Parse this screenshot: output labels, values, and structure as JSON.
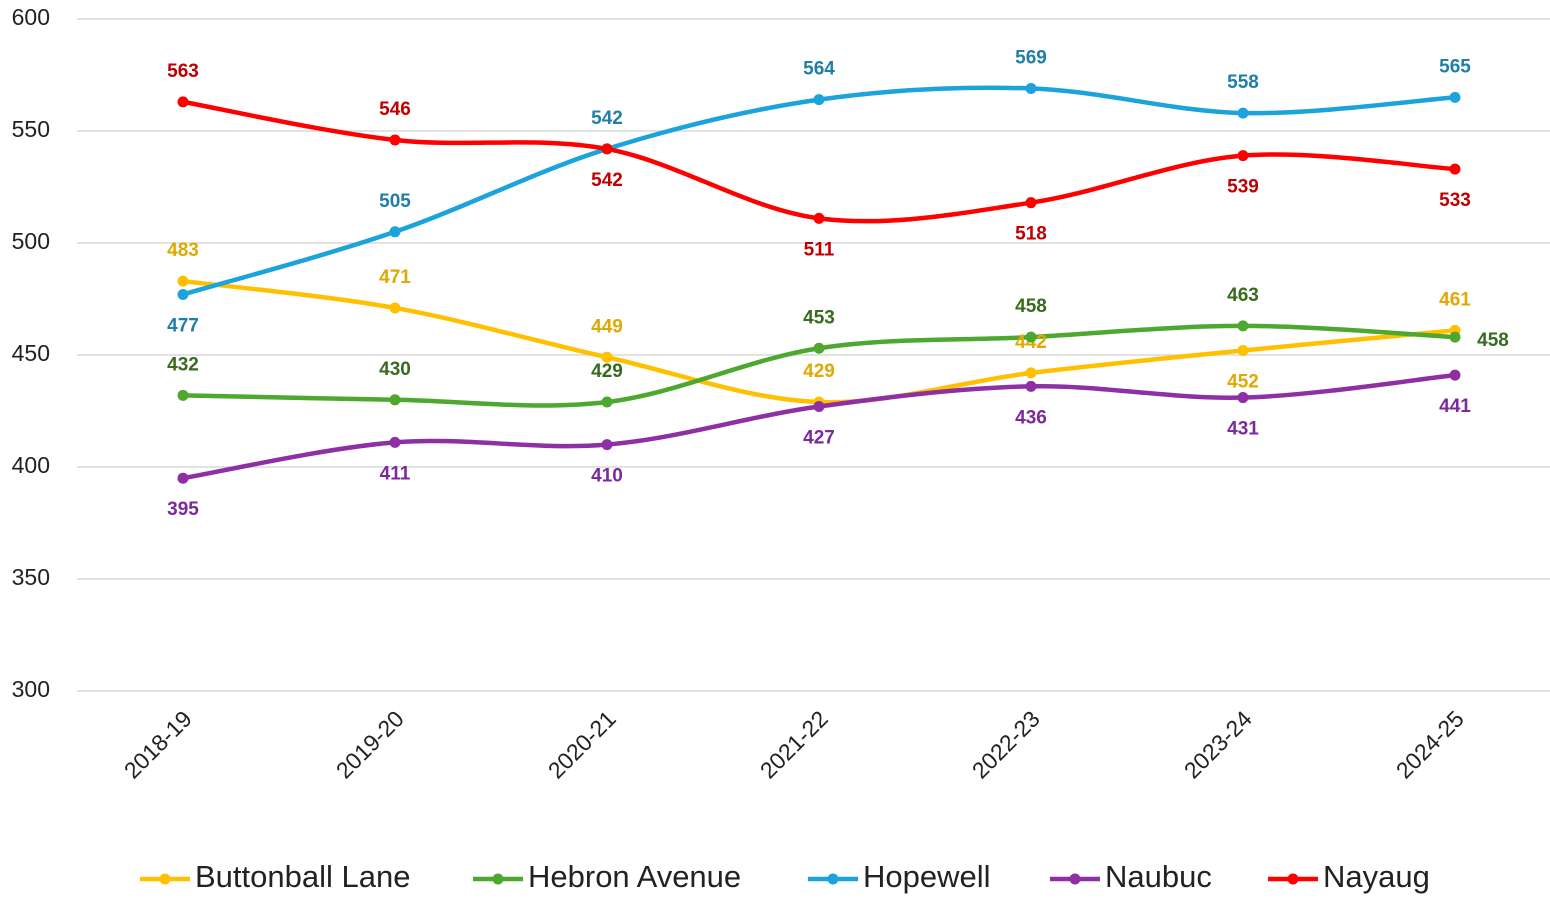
{
  "chart_data": {
    "type": "line",
    "categories": [
      "2018-19",
      "2019-20",
      "2020-21",
      "2021-22",
      "2022-23",
      "2023-24",
      "2024-25"
    ],
    "series": [
      {
        "name": "Buttonball Lane",
        "color": "#FFC000",
        "label_color": "#E0A800",
        "values": [
          483,
          471,
          449,
          429,
          442,
          452,
          461
        ]
      },
      {
        "name": "Hebron Avenue",
        "color": "#4EA72E",
        "label_color": "#386B1F",
        "values": [
          432,
          430,
          429,
          453,
          458,
          463,
          458
        ]
      },
      {
        "name": "Hopewell",
        "color": "#1CA3DC",
        "label_color": "#1F7EAA",
        "values": [
          477,
          505,
          542,
          564,
          569,
          558,
          565
        ]
      },
      {
        "name": "Naubuc",
        "color": "#8E2FA3",
        "label_color": "#7A2A9C",
        "values": [
          395,
          411,
          410,
          427,
          436,
          431,
          441
        ]
      },
      {
        "name": "Nayaug",
        "color": "#FF0000",
        "label_color": "#C00000",
        "values": [
          563,
          546,
          542,
          511,
          518,
          539,
          533
        ]
      }
    ],
    "ylim": [
      300,
      600
    ],
    "yticks": [
      300,
      350,
      400,
      450,
      500,
      550,
      600
    ],
    "grid": true,
    "legend": "bottom"
  }
}
